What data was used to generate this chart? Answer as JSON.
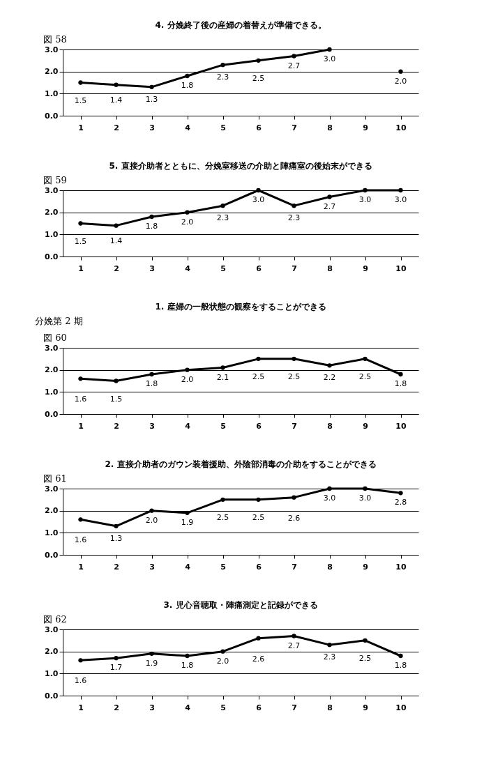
{
  "chart_data": [
    {
      "type": "line",
      "title": "4. 分娩終了後の産婦の着替えが準備できる。",
      "subtitle": "図 58",
      "categories": [
        "1",
        "2",
        "3",
        "4",
        "5",
        "6",
        "7",
        "8",
        "9",
        "10"
      ],
      "values": [
        1.5,
        1.4,
        1.3,
        1.8,
        2.3,
        2.5,
        2.7,
        3.0,
        null,
        2.0
      ],
      "value_labels": [
        "1.5",
        "1.4",
        "1.3",
        "1.8",
        "2.3",
        "2.5",
        "2.7",
        "3.0",
        null,
        "2.0"
      ],
      "color": "#000000",
      "ylim": [
        0,
        3
      ],
      "yticks": [
        {
          "value": 0,
          "label": "0.0"
        },
        {
          "value": 1,
          "label": "1.0"
        },
        {
          "value": 2,
          "label": "2.0"
        },
        {
          "value": 3,
          "label": "3.0"
        }
      ],
      "grid": "y",
      "marker": "circle"
    },
    {
      "type": "line",
      "title": "5. 直接介助者とともに、分娩室移送の介助と陣痛室の後始末ができる",
      "subtitle": "図 59",
      "categories": [
        "1",
        "2",
        "3",
        "4",
        "5",
        "6",
        "7",
        "8",
        "9",
        "10"
      ],
      "values": [
        1.5,
        1.4,
        1.8,
        2.0,
        2.3,
        3.0,
        2.3,
        2.7,
        3.0,
        3.0
      ],
      "value_labels": [
        "1.5",
        "1.4",
        "1.8",
        "2.0",
        "2.3",
        "3.0",
        "2.3",
        "2.7",
        "3.0",
        "3.0"
      ],
      "color": "#000000",
      "ylim": [
        0,
        3
      ],
      "yticks": [
        {
          "value": 0,
          "label": "0.0"
        },
        {
          "value": 1,
          "label": "1.0"
        },
        {
          "value": 2,
          "label": "2.0"
        },
        {
          "value": 3,
          "label": "3.0"
        }
      ],
      "grid": "y",
      "marker": "circle"
    },
    {
      "type": "line",
      "title": "1. 産婦の一般状態の観察をすることができる",
      "subtitle": "図 60",
      "annotations": [
        "分娩第 2 期"
      ],
      "categories": [
        "1",
        "2",
        "3",
        "4",
        "5",
        "6",
        "7",
        "8",
        "9",
        "10"
      ],
      "values": [
        1.6,
        1.5,
        1.8,
        2.0,
        2.1,
        2.5,
        2.5,
        2.2,
        2.5,
        1.8
      ],
      "value_labels": [
        "1.6",
        "1.5",
        "1.8",
        "2.0",
        "2.1",
        "2.5",
        "2.5",
        "2.2",
        "2.5",
        "1.8"
      ],
      "color": "#000000",
      "ylim": [
        0,
        3
      ],
      "yticks": [
        {
          "value": 0,
          "label": "0.0"
        },
        {
          "value": 1,
          "label": "1.0"
        },
        {
          "value": 2,
          "label": "2.0"
        },
        {
          "value": 3,
          "label": "3.0"
        }
      ],
      "grid": "y",
      "marker": "circle"
    },
    {
      "type": "line",
      "title": "2. 直接介助者のガウン装着援助、外陰部消毒の介助をすることができる",
      "subtitle": "図 61",
      "categories": [
        "1",
        "2",
        "3",
        "4",
        "5",
        "6",
        "7",
        "8",
        "9",
        "10"
      ],
      "values": [
        1.6,
        1.3,
        2.0,
        1.9,
        2.5,
        2.5,
        2.6,
        3.0,
        3.0,
        2.8
      ],
      "value_labels": [
        "1.6",
        "1.3",
        "2.0",
        "1.9",
        "2.5",
        "2.5",
        "2.6",
        "3.0",
        "3.0",
        "2.8"
      ],
      "color": "#000000",
      "ylim": [
        0,
        3
      ],
      "yticks": [
        {
          "value": 0,
          "label": "0.0"
        },
        {
          "value": 1,
          "label": "1.0"
        },
        {
          "value": 2,
          "label": "2.0"
        },
        {
          "value": 3,
          "label": "3.0"
        }
      ],
      "grid": "y",
      "marker": "circle"
    },
    {
      "type": "line",
      "title": "3. 児心音聴取・陣痛測定と記録ができる",
      "subtitle": "図 62",
      "categories": [
        "1",
        "2",
        "3",
        "4",
        "5",
        "6",
        "7",
        "8",
        "9",
        "10"
      ],
      "values": [
        1.6,
        1.7,
        1.9,
        1.8,
        2.0,
        2.6,
        2.7,
        2.3,
        2.5,
        1.8
      ],
      "value_labels": [
        "1.6",
        "1.7",
        "1.9",
        "1.8",
        "2.0",
        "2.6",
        "2.7",
        "2.3",
        "2.5",
        "1.8"
      ],
      "color": "#000000",
      "ylim": [
        0,
        3
      ],
      "yticks": [
        {
          "value": 0,
          "label": "0.0"
        },
        {
          "value": 1,
          "label": "1.0"
        },
        {
          "value": 2,
          "label": "2.0"
        },
        {
          "value": 3,
          "label": "3.0"
        }
      ],
      "grid": "y",
      "marker": "circle"
    }
  ]
}
